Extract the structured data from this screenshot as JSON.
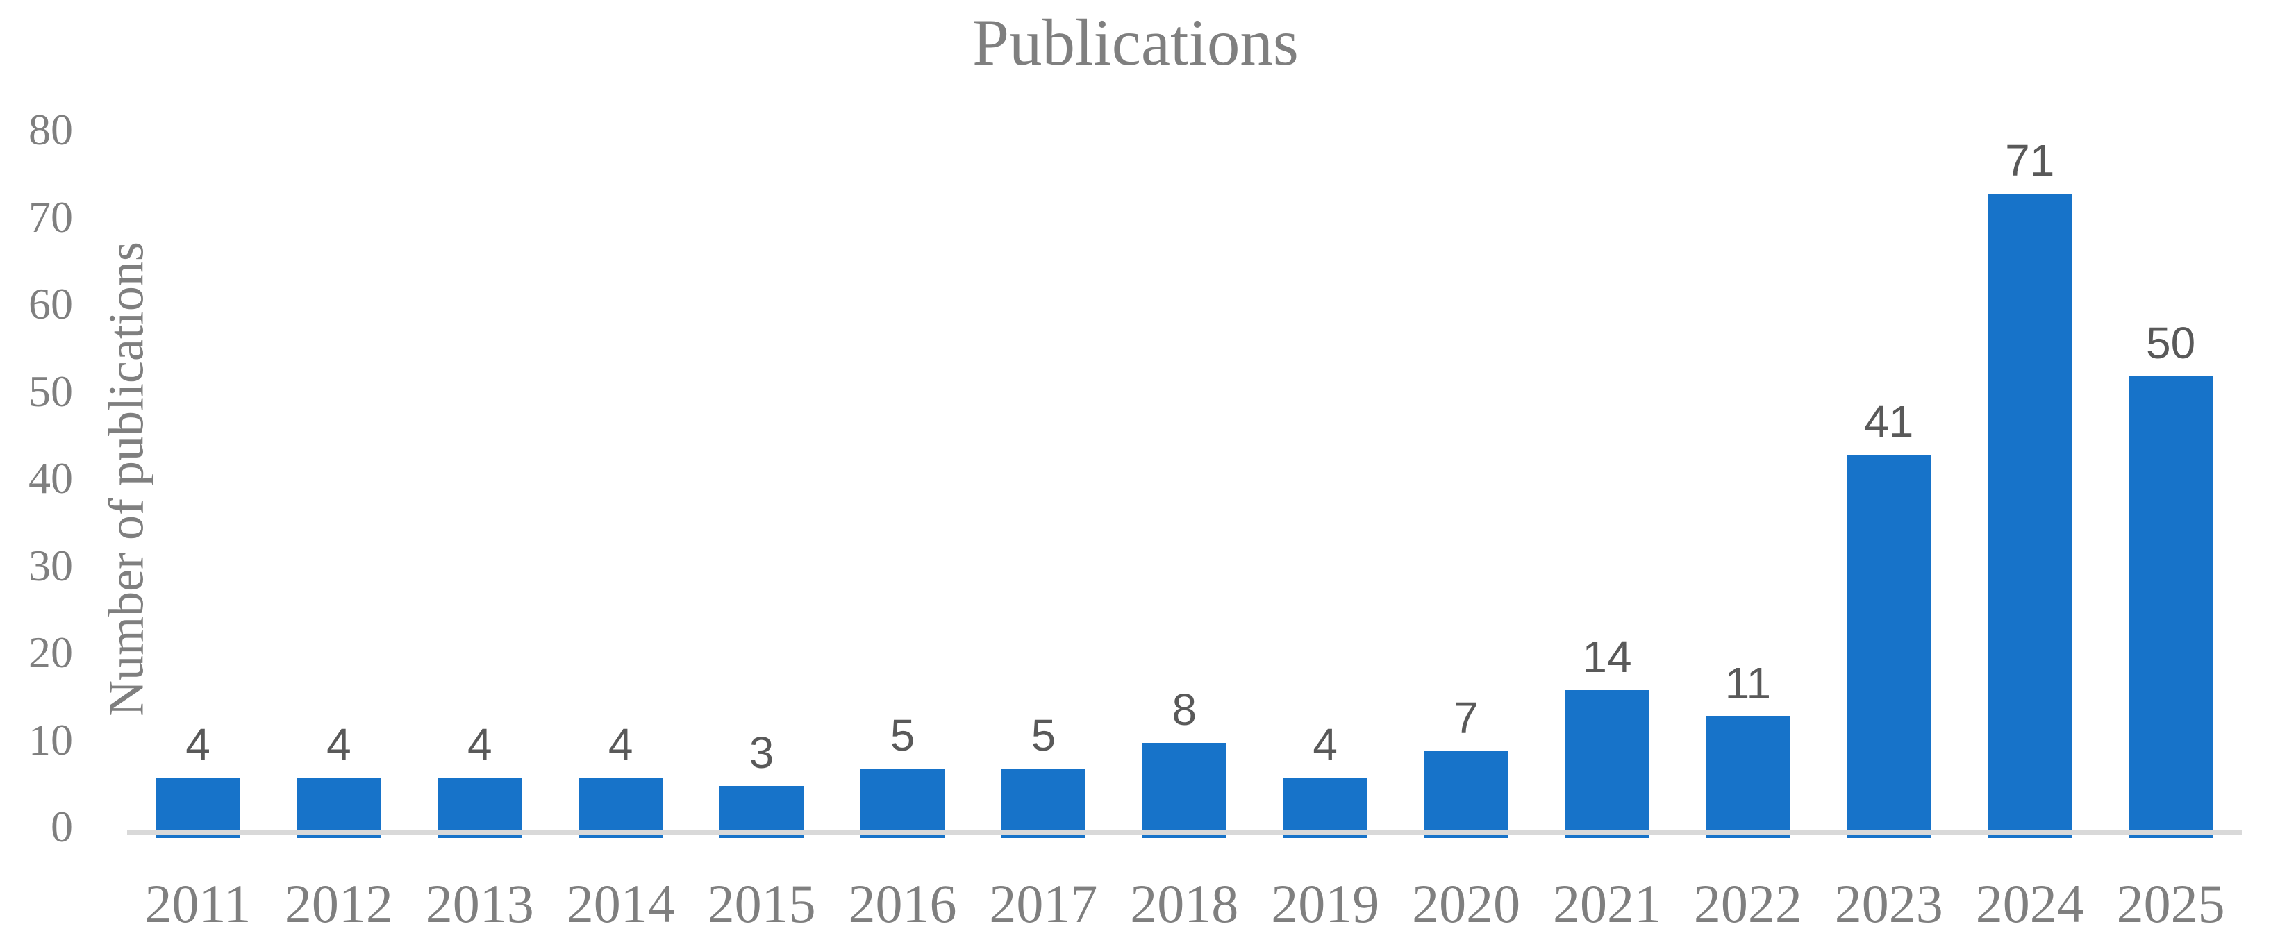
{
  "chart_data": {
    "type": "bar",
    "title": "Publications",
    "xlabel": "",
    "ylabel": "Number of publications",
    "categories": [
      "2011",
      "2012",
      "2013",
      "2014",
      "2015",
      "2016",
      "2017",
      "2018",
      "2019",
      "2020",
      "2021",
      "2022",
      "2023",
      "2024",
      "2025"
    ],
    "values": [
      4,
      4,
      4,
      4,
      3,
      5,
      5,
      8,
      4,
      7,
      14,
      11,
      41,
      71,
      50
    ],
    "ylim": [
      0,
      80
    ],
    "yticks": [
      0,
      10,
      20,
      30,
      40,
      50,
      60,
      70,
      80
    ],
    "grid": false,
    "legend": "none",
    "data_labels": true,
    "bar_extra_units": 2,
    "colors": {
      "bar": "#1773C9",
      "axis_line": "#D9D9D9",
      "axis_text": "#7F7F7F",
      "data_label_text": "#595959",
      "background": "#FFFFFF"
    }
  }
}
